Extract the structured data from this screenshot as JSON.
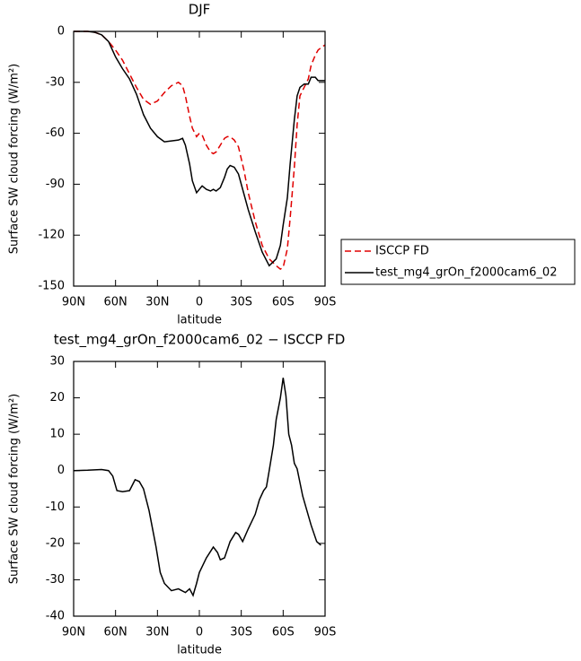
{
  "chart_data": [
    {
      "type": "line",
      "title": "DJF",
      "xlabel": "latitude",
      "ylabel": "Surface SW cloud forcing (W/m²)",
      "x": [
        90,
        85,
        80,
        75,
        70,
        65,
        60,
        55,
        50,
        45,
        40,
        35,
        30,
        25,
        20,
        15,
        12,
        10,
        7,
        5,
        2,
        0,
        -2,
        -5,
        -8,
        -10,
        -12,
        -15,
        -18,
        -20,
        -22,
        -25,
        -28,
        -32,
        -35,
        -40,
        -45,
        -50,
        -55,
        -58,
        -60,
        -63,
        -65,
        -68,
        -70,
        -72,
        -75,
        -78,
        -80,
        -83,
        -85,
        -88,
        -90
      ],
      "series": [
        {
          "name": "ISCCP FD",
          "color": "#e00000",
          "line_style": "dashed",
          "values": [
            0,
            0,
            0,
            -0.5,
            -2,
            -6,
            -11,
            -17,
            -25,
            -33,
            -40,
            -43,
            -41,
            -36,
            -32,
            -30,
            -32,
            -38,
            -50,
            -57,
            -62,
            -60,
            -61,
            -67,
            -71,
            -72,
            -71,
            -67,
            -63,
            -62,
            -62,
            -64,
            -68,
            -82,
            -95,
            -112,
            -126,
            -134,
            -138,
            -140,
            -139,
            -128,
            -110,
            -80,
            -55,
            -38,
            -33,
            -28,
            -20,
            -14,
            -11,
            -9,
            -8
          ]
        },
        {
          "name": "test_mg4_grOn_f2000cam6_02",
          "color": "#000000",
          "line_style": "solid",
          "values": [
            0,
            0,
            0,
            -0.5,
            -2,
            -6,
            -15,
            -22,
            -28,
            -37,
            -49,
            -57,
            -62,
            -65,
            -64.5,
            -64,
            -63,
            -67,
            -78,
            -88,
            -95,
            -93,
            -91,
            -93,
            -94,
            -93,
            -94,
            -92,
            -86,
            -81,
            -79,
            -80,
            -84,
            -96,
            -105,
            -118,
            -130,
            -138,
            -134,
            -126,
            -114,
            -98,
            -78,
            -52,
            -38,
            -33,
            -31,
            -31,
            -27,
            -27,
            -29,
            -29,
            -29
          ]
        }
      ],
      "xlim": [
        90,
        -90
      ],
      "xticks": [
        {
          "value": 90,
          "label": "90N"
        },
        {
          "value": 60,
          "label": "60N"
        },
        {
          "value": 30,
          "label": "30N"
        },
        0,
        {
          "value": -30,
          "label": "30S"
        },
        {
          "value": -60,
          "label": "60S"
        },
        {
          "value": -90,
          "label": "90S"
        }
      ],
      "ylim": [
        -150,
        0
      ],
      "yticks": [
        0,
        -30,
        -60,
        -90,
        -120,
        -150
      ],
      "legend": "right"
    },
    {
      "type": "line",
      "title": "test_mg4_grOn_f2000cam6_02 − ISCCP FD",
      "xlabel": "latitude",
      "ylabel": "Surface SW cloud forcing (W/m²)",
      "x": [
        90,
        80,
        75,
        70,
        65,
        62,
        59,
        55,
        50,
        46,
        43,
        40,
        36,
        33,
        31,
        28,
        25,
        20,
        15,
        10,
        7,
        4.5,
        2,
        0,
        -5,
        -10,
        -13,
        -15,
        -18,
        -22,
        -26,
        -28,
        -31,
        -35,
        -40,
        -43,
        -46,
        -48,
        -50,
        -53,
        -55,
        -58,
        -60,
        -62,
        -64,
        -66,
        -68,
        -70,
        -74,
        -77,
        -80,
        -84,
        -87
      ],
      "series": [
        {
          "color": "#000000",
          "line_style": "solid",
          "values": [
            0,
            0.1,
            0.2,
            0.3,
            0,
            -1.5,
            -5.5,
            -5.8,
            -5.5,
            -2.5,
            -3,
            -5,
            -11,
            -17,
            -21,
            -28,
            -31,
            -33,
            -32.5,
            -33.5,
            -32.5,
            -34.3,
            -31,
            -28,
            -24,
            -21,
            -22.5,
            -24.5,
            -24,
            -19.5,
            -17,
            -17.5,
            -19.5,
            -16,
            -12,
            -8,
            -5.5,
            -4.5,
            0,
            7,
            14,
            20,
            25.5,
            20.5,
            10,
            7,
            2,
            0.5,
            -7,
            -11,
            -15,
            -19.5,
            -20.5
          ]
        }
      ],
      "xlim": [
        90,
        -90
      ],
      "xticks": [
        {
          "value": 90,
          "label": "90N"
        },
        {
          "value": 60,
          "label": "60N"
        },
        {
          "value": 30,
          "label": "30N"
        },
        0,
        {
          "value": -30,
          "label": "30S"
        },
        {
          "value": -60,
          "label": "60S"
        },
        {
          "value": -90,
          "label": "90S"
        }
      ],
      "ylim": [
        -40,
        30
      ],
      "yticks": [
        30,
        20,
        10,
        0,
        -10,
        -20,
        -30,
        -40
      ]
    }
  ]
}
